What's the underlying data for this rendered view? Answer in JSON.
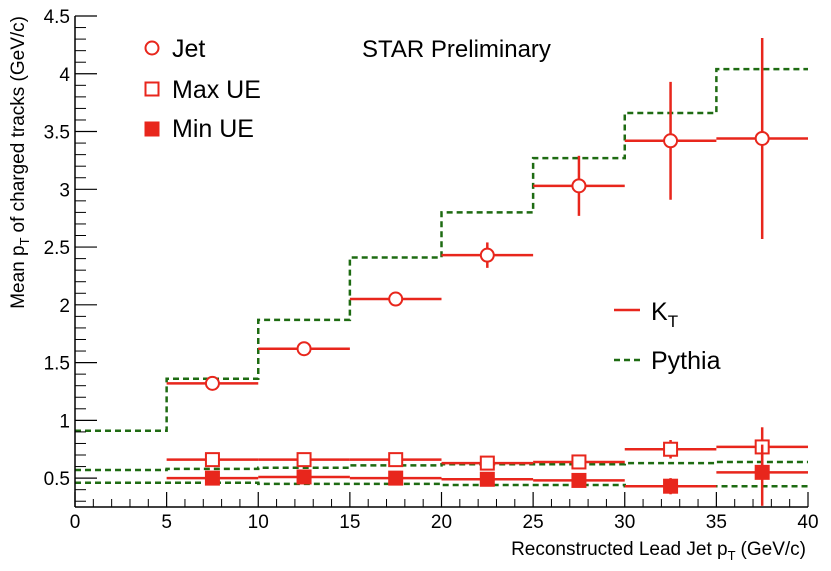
{
  "chart_data": {
    "type": "scatter",
    "title": "",
    "banner": "STAR Preliminary",
    "xlabel": "Reconstructed Lead Jet p",
    "xlabel_sub": "T",
    "xlabel_unit": "(GeV/c)",
    "ylabel": "Mean p",
    "ylabel_sub": "T",
    "ylabel_rest": "of charged tracks (GeV/c)",
    "xlim": [
      0,
      40
    ],
    "ylim": [
      0.25,
      4.5
    ],
    "xticks": [
      0,
      5,
      10,
      15,
      20,
      25,
      30,
      35,
      40
    ],
    "xtick_labels": [
      "0",
      "5",
      "10",
      "15",
      "20",
      "25",
      "30",
      "35",
      "40"
    ],
    "yticks": [
      0.5,
      1,
      1.5,
      2,
      2.5,
      3,
      3.5,
      4,
      4.5
    ],
    "ytick_labels": [
      "0.5",
      "1",
      "1.5",
      "2",
      "2.5",
      "3",
      "3.5",
      "4",
      "4.5"
    ],
    "colors": {
      "data": "#e8261c",
      "pythia": "#1e6b12",
      "axis": "#000000"
    },
    "legend_markers": {
      "entries": [
        {
          "label": "Jet",
          "marker": "open-circle"
        },
        {
          "label": "Max UE",
          "marker": "open-square"
        },
        {
          "label": "Min UE",
          "marker": "filled-square"
        }
      ]
    },
    "legend_lines": {
      "entries": [
        {
          "label": "K",
          "label_sub": "T",
          "style": "solid",
          "series": "KT"
        },
        {
          "label": "Pythia",
          "style": "dashed",
          "series": "Pythia"
        }
      ]
    },
    "series": [
      {
        "name": "Jet",
        "marker": "open-circle",
        "points": [
          {
            "x": 7.5,
            "y": 1.32,
            "xlo": 5,
            "xhi": 10,
            "ylo": 1.3,
            "yhi": 1.34
          },
          {
            "x": 12.5,
            "y": 1.62,
            "xlo": 10,
            "xhi": 15,
            "ylo": 1.6,
            "yhi": 1.64
          },
          {
            "x": 17.5,
            "y": 2.05,
            "xlo": 15,
            "xhi": 20,
            "ylo": 2.03,
            "yhi": 2.07
          },
          {
            "x": 22.5,
            "y": 2.43,
            "xlo": 20,
            "xhi": 25,
            "ylo": 2.32,
            "yhi": 2.54
          },
          {
            "x": 27.5,
            "y": 3.03,
            "xlo": 25,
            "xhi": 30,
            "ylo": 2.77,
            "yhi": 3.29
          },
          {
            "x": 32.5,
            "y": 3.42,
            "xlo": 30,
            "xhi": 35,
            "ylo": 2.91,
            "yhi": 3.93
          },
          {
            "x": 37.5,
            "y": 3.44,
            "xlo": 35,
            "xhi": 40,
            "ylo": 2.57,
            "yhi": 4.31
          }
        ]
      },
      {
        "name": "Max UE",
        "marker": "open-square",
        "points": [
          {
            "x": 7.5,
            "y": 0.66,
            "xlo": 5,
            "xhi": 10,
            "ylo": 0.66,
            "yhi": 0.66
          },
          {
            "x": 12.5,
            "y": 0.66,
            "xlo": 10,
            "xhi": 15,
            "ylo": 0.66,
            "yhi": 0.66
          },
          {
            "x": 17.5,
            "y": 0.66,
            "xlo": 15,
            "xhi": 20,
            "ylo": 0.66,
            "yhi": 0.66
          },
          {
            "x": 22.5,
            "y": 0.63,
            "xlo": 20,
            "xhi": 25,
            "ylo": 0.63,
            "yhi": 0.63
          },
          {
            "x": 27.5,
            "y": 0.64,
            "xlo": 25,
            "xhi": 30,
            "ylo": 0.61,
            "yhi": 0.67
          },
          {
            "x": 32.5,
            "y": 0.75,
            "xlo": 30,
            "xhi": 35,
            "ylo": 0.67,
            "yhi": 0.83
          },
          {
            "x": 37.5,
            "y": 0.77,
            "xlo": 35,
            "xhi": 40,
            "ylo": 0.6,
            "yhi": 0.94
          }
        ]
      },
      {
        "name": "Min UE",
        "marker": "filled-square",
        "points": [
          {
            "x": 7.5,
            "y": 0.5,
            "xlo": 5,
            "xhi": 10,
            "ylo": 0.5,
            "yhi": 0.5
          },
          {
            "x": 12.5,
            "y": 0.51,
            "xlo": 10,
            "xhi": 15,
            "ylo": 0.51,
            "yhi": 0.51
          },
          {
            "x": 17.5,
            "y": 0.5,
            "xlo": 15,
            "xhi": 20,
            "ylo": 0.5,
            "yhi": 0.5
          },
          {
            "x": 22.5,
            "y": 0.49,
            "xlo": 20,
            "xhi": 25,
            "ylo": 0.49,
            "yhi": 0.49
          },
          {
            "x": 27.5,
            "y": 0.48,
            "xlo": 25,
            "xhi": 30,
            "ylo": 0.46,
            "yhi": 0.5
          },
          {
            "x": 32.5,
            "y": 0.43,
            "xlo": 30,
            "xhi": 35,
            "ylo": 0.36,
            "yhi": 0.5
          },
          {
            "x": 37.5,
            "y": 0.55,
            "xlo": 35,
            "xhi": 40,
            "ylo": 0.26,
            "yhi": 0.79
          }
        ]
      }
    ],
    "pythia": {
      "name": "Pythia",
      "style": "dashed",
      "curves": [
        {
          "name": "Jet",
          "edges": [
            0,
            5,
            10,
            15,
            20,
            25,
            30,
            35,
            40
          ],
          "values": [
            0.91,
            1.36,
            1.87,
            2.41,
            2.8,
            3.27,
            3.66,
            4.04
          ]
        },
        {
          "name": "Max UE",
          "edges": [
            0,
            5,
            10,
            15,
            20,
            25,
            30,
            35,
            40
          ],
          "values": [
            0.57,
            0.58,
            0.59,
            0.61,
            0.62,
            0.62,
            0.63,
            0.64
          ]
        },
        {
          "name": "Min UE",
          "edges": [
            0,
            5,
            10,
            15,
            20,
            25,
            30,
            35,
            40
          ],
          "values": [
            0.46,
            0.46,
            0.45,
            0.45,
            0.44,
            0.44,
            0.43,
            0.43
          ]
        }
      ]
    }
  }
}
